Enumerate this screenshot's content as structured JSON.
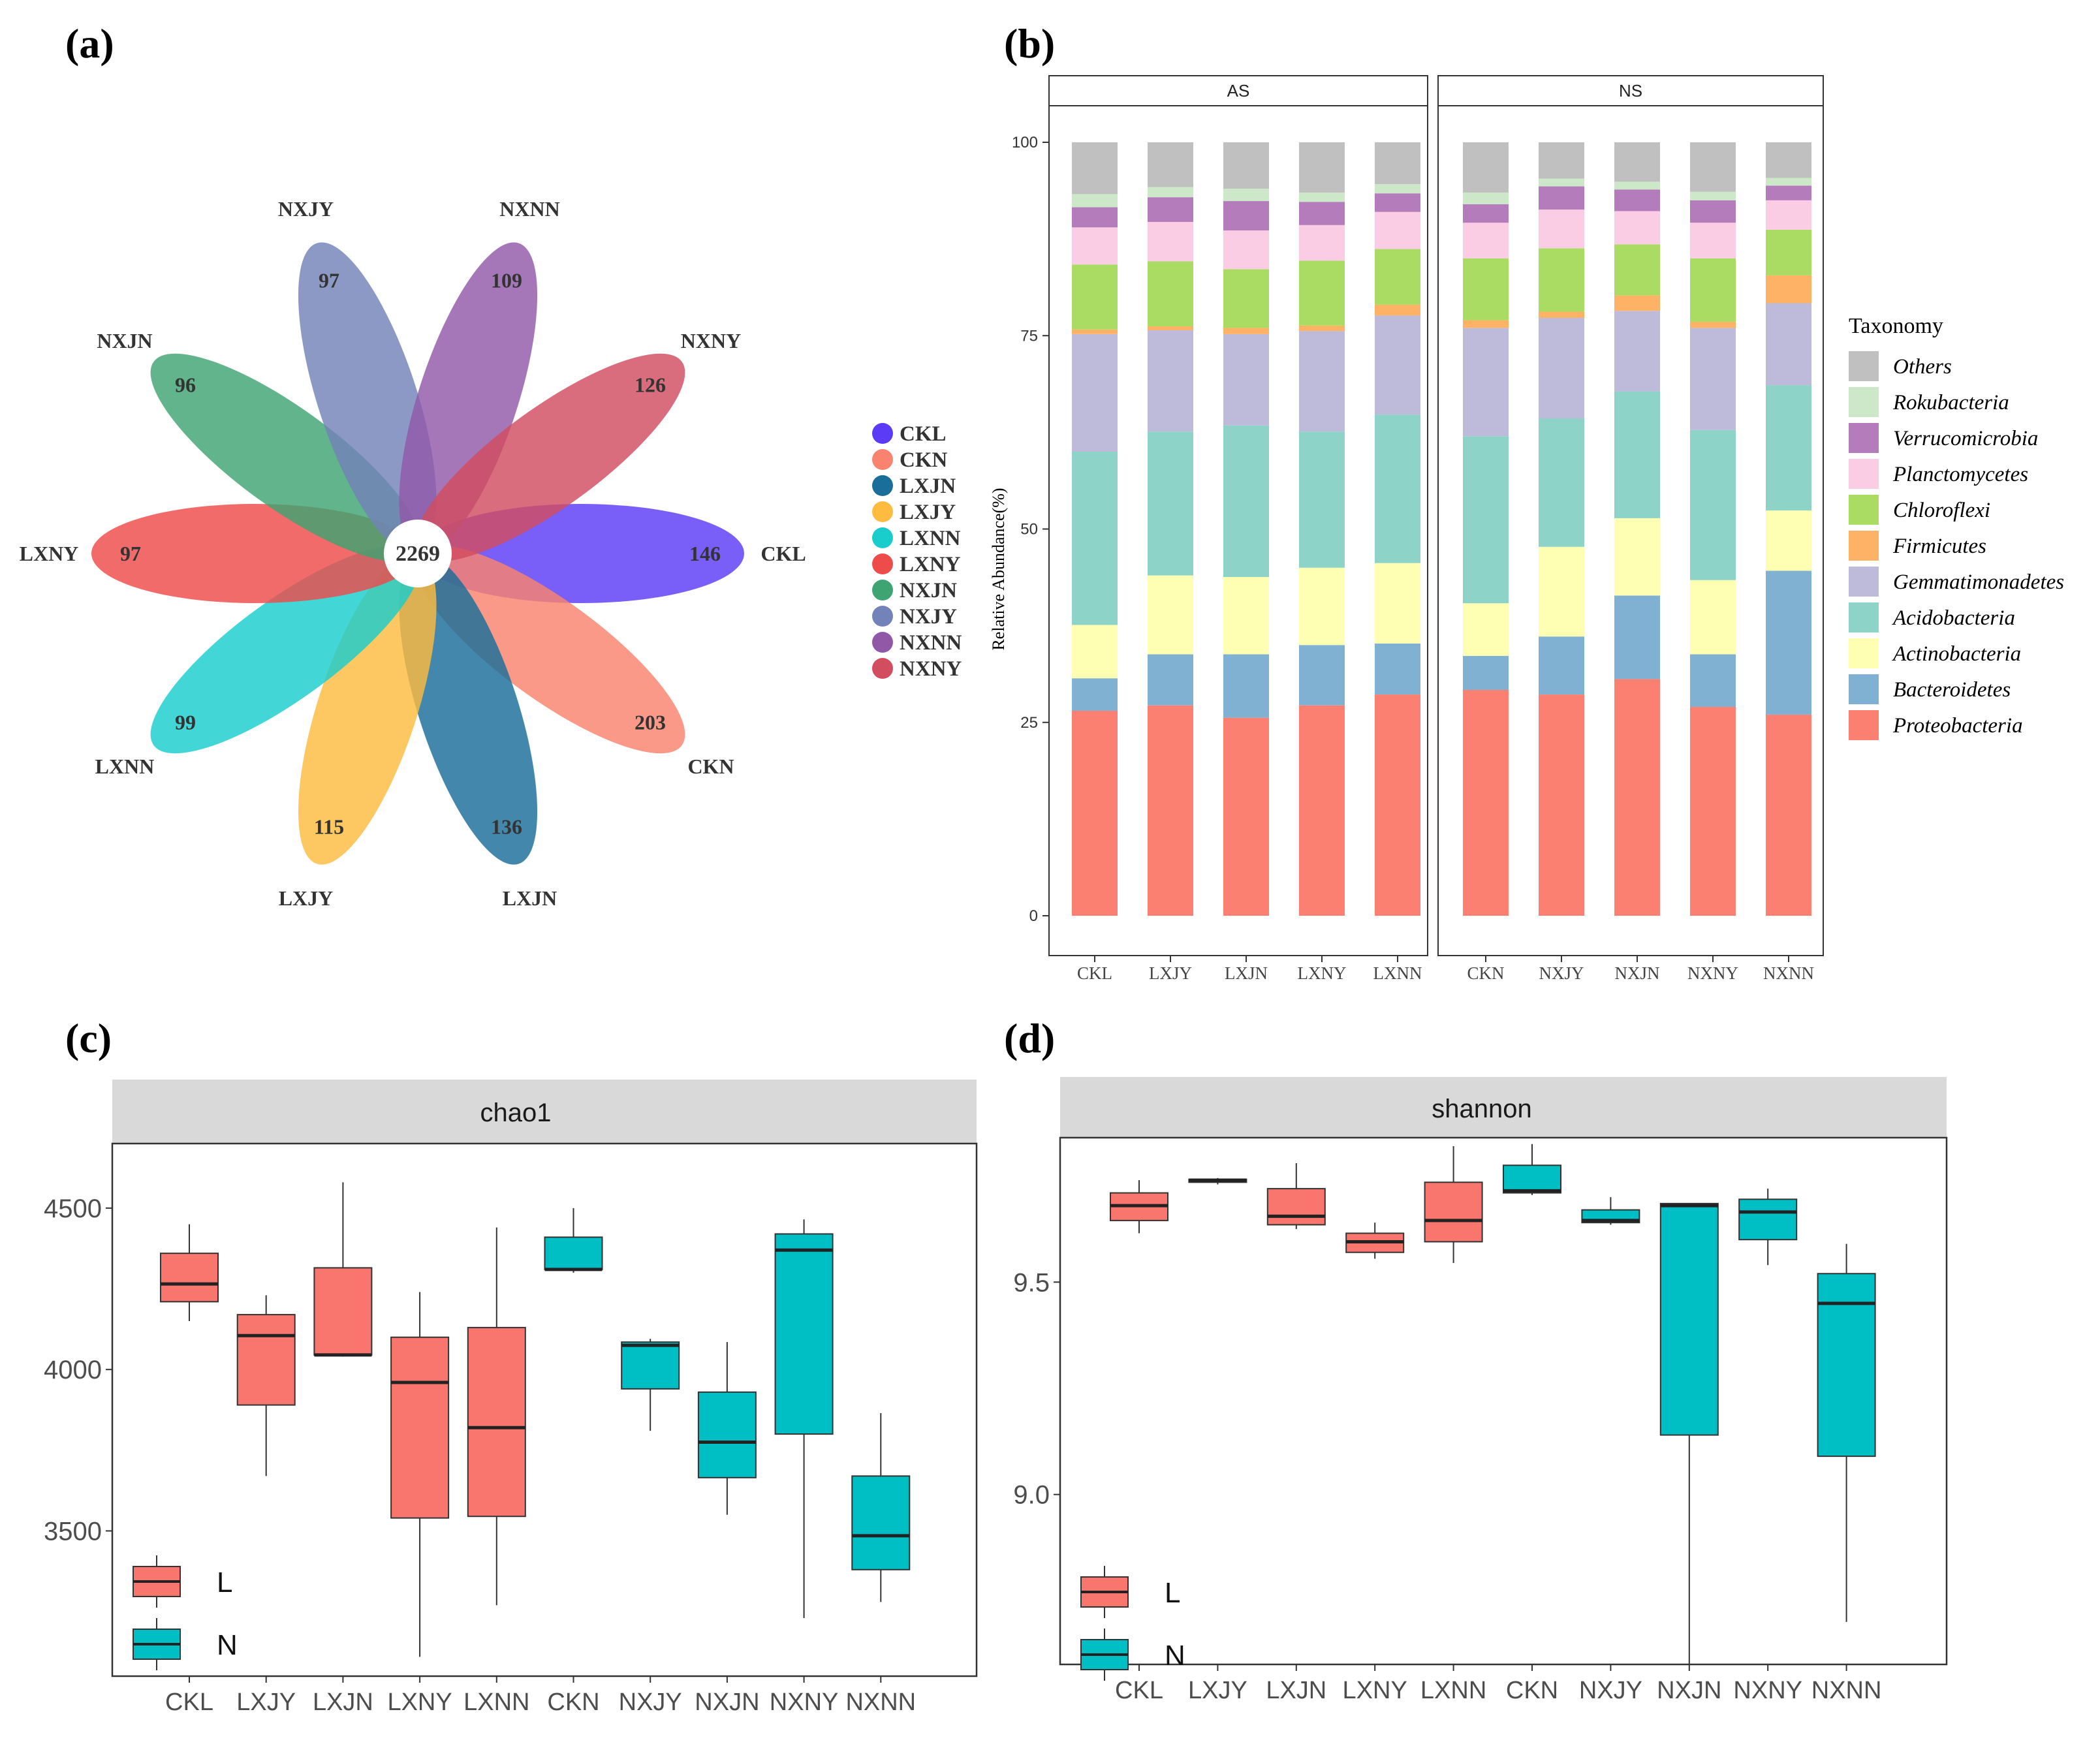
{
  "panel_labels": {
    "a": "(a)",
    "b": "(b)",
    "c": "(c)",
    "d": "(d)"
  },
  "colors": {
    "CKL": "#5B3BF5",
    "CKN": "#F9836E",
    "LXJN": "#1A6E9A",
    "LXJY": "#FDBB3F",
    "LXNN": "#19CDCD",
    "LXNY": "#EE4B4B",
    "NXJN": "#3EA472",
    "NXJY": "#7382B8",
    "NXNN": "#9158A8",
    "NXNY": "#D24D60",
    "box_L": "#F8766D",
    "box_N": "#00BFC4",
    "taxa": {
      "Others": "#C0C0C0",
      "Rokubacteria": "#CDE8C8",
      "Verrucomicrobia": "#B47CBB",
      "Planctomycetes": "#FBCDE5",
      "Chloroflexi": "#AADB63",
      "Firmicutes": "#FDB266",
      "Gemmatimonadetes": "#BEBADA",
      "Acidobacteria": "#8DD3C7",
      "Actinobacteria": "#FFFFB3",
      "Bacteroidetes": "#80B1D3",
      "Proteobacteria": "#FB8072"
    }
  },
  "chart_data": [
    {
      "type": "venn-flower",
      "panel": "a",
      "center_label": "2269",
      "petals": [
        {
          "group": "CKL",
          "unique": "146",
          "label": "CKL"
        },
        {
          "group": "CKN",
          "unique": "203",
          "label": "CKN"
        },
        {
          "group": "LXJN",
          "unique": "136",
          "label": "LXJN"
        },
        {
          "group": "LXJY",
          "unique": "115",
          "label": "LXJY"
        },
        {
          "group": "LXNN",
          "unique": "99",
          "label": "LXNN"
        },
        {
          "group": "LXNY",
          "unique": "97",
          "label": "LXNY"
        },
        {
          "group": "NXJN",
          "unique": "96",
          "label": "NXJN"
        },
        {
          "group": "NXJY",
          "unique": "97",
          "label": "NXJY"
        },
        {
          "group": "NXNN",
          "unique": "109",
          "label": "NXNN"
        },
        {
          "group": "NXNY",
          "unique": "126",
          "label": "NXNY"
        }
      ],
      "legend": [
        "CKL",
        "CKN",
        "LXJN",
        "LXJY",
        "LXNN",
        "LXNY",
        "NXJN",
        "NXJY",
        "NXNN",
        "NXNY"
      ]
    },
    {
      "type": "bar",
      "stacked": true,
      "panel": "b",
      "ylabel": "Relative Abundance(%)",
      "ylim": [
        0,
        100
      ],
      "yticks": [
        "0",
        "25",
        "50",
        "75",
        "100"
      ],
      "legend_title": "Taxonomy",
      "facets": [
        {
          "name": "AS",
          "categories": [
            "CKL",
            "LXJY",
            "LXJN",
            "LXNY",
            "LXNN"
          ]
        },
        {
          "name": "NS",
          "categories": [
            "CKN",
            "NXJY",
            "NXJN",
            "NXNY",
            "NXNN"
          ]
        }
      ],
      "series": [
        {
          "name": "Proteobacteria",
          "values": [
            26.5,
            27.2,
            25.6,
            27.2,
            28.6,
            29.2,
            28.6,
            30.6,
            27.0,
            26.0
          ]
        },
        {
          "name": "Bacteroidetes",
          "values": [
            4.2,
            6.6,
            8.2,
            7.8,
            6.6,
            4.4,
            7.5,
            10.8,
            6.8,
            18.6
          ]
        },
        {
          "name": "Actinobacteria",
          "values": [
            6.9,
            10.2,
            10.0,
            10.0,
            10.4,
            6.8,
            11.6,
            10.0,
            9.6,
            7.8
          ]
        },
        {
          "name": "Acidobacteria",
          "values": [
            22.4,
            18.6,
            19.6,
            17.6,
            19.2,
            21.6,
            16.6,
            16.4,
            19.4,
            16.2
          ]
        },
        {
          "name": "Gemmatimonadetes",
          "values": [
            15.2,
            13.1,
            11.8,
            13.0,
            12.8,
            14.0,
            13.0,
            10.4,
            13.2,
            10.6
          ]
        },
        {
          "name": "Firmicutes",
          "values": [
            0.6,
            0.5,
            0.8,
            0.7,
            1.4,
            1.0,
            0.8,
            2.0,
            0.8,
            3.6
          ]
        },
        {
          "name": "Chloroflexi",
          "values": [
            8.4,
            8.4,
            7.6,
            8.4,
            7.2,
            8.0,
            8.2,
            6.6,
            8.2,
            5.9
          ]
        },
        {
          "name": "Planctomycetes",
          "values": [
            4.8,
            5.1,
            5.0,
            4.6,
            4.8,
            4.6,
            5.0,
            4.3,
            4.6,
            3.8
          ]
        },
        {
          "name": "Verrucomicrobia",
          "values": [
            2.6,
            3.2,
            3.8,
            3.0,
            2.4,
            2.4,
            3.0,
            2.8,
            2.9,
            1.9
          ]
        },
        {
          "name": "Rokubacteria",
          "values": [
            1.7,
            1.3,
            1.6,
            1.2,
            1.2,
            1.5,
            1.0,
            1.0,
            1.1,
            1.0
          ]
        },
        {
          "name": "Others",
          "values": [
            6.7,
            5.8,
            6.0,
            6.5,
            5.4,
            6.5,
            4.7,
            5.1,
            6.4,
            4.6
          ]
        }
      ],
      "legend_order": [
        "Others",
        "Rokubacteria",
        "Verrucomicrobia",
        "Planctomycetes",
        "Chloroflexi",
        "Firmicutes",
        "Gemmatimonadetes",
        "Acidobacteria",
        "Actinobacteria",
        "Bacteroidetes",
        "Proteobacteria"
      ]
    },
    {
      "type": "boxplot",
      "panel": "c",
      "title": "chao1",
      "categories": [
        "CKL",
        "LXJY",
        "LXJN",
        "LXNY",
        "LXNN",
        "CKN",
        "NXJY",
        "NXJN",
        "NXNY",
        "NXNN"
      ],
      "groups": [
        "L",
        "L",
        "L",
        "L",
        "L",
        "N",
        "N",
        "N",
        "N",
        "N"
      ],
      "ylim": [
        3050,
        4700
      ],
      "yticks": [
        "3500",
        "4000",
        "4500"
      ],
      "boxes": [
        {
          "min": 4150,
          "q1": 4210,
          "median": 4265,
          "q3": 4360,
          "max": 4450
        },
        {
          "min": 3670,
          "q1": 3890,
          "median": 4105,
          "q3": 4170,
          "max": 4230
        },
        {
          "min": 4040,
          "q1": 4045,
          "median": 4045,
          "q3": 4315,
          "max": 4580
        },
        {
          "min": 3110,
          "q1": 3540,
          "median": 3960,
          "q3": 4100,
          "max": 4240
        },
        {
          "min": 3270,
          "q1": 3545,
          "median": 3820,
          "q3": 4130,
          "max": 4440
        },
        {
          "min": 4300,
          "q1": 4310,
          "median": 4310,
          "q3": 4410,
          "max": 4500
        },
        {
          "min": 3810,
          "q1": 3940,
          "median": 4075,
          "q3": 4085,
          "max": 4095
        },
        {
          "min": 3550,
          "q1": 3665,
          "median": 3775,
          "q3": 3930,
          "max": 4085
        },
        {
          "min": 3230,
          "q1": 3800,
          "median": 4370,
          "q3": 4420,
          "max": 4465
        },
        {
          "min": 3280,
          "q1": 3380,
          "median": 3485,
          "q3": 3670,
          "max": 3865
        }
      ],
      "legend": [
        {
          "key": "L",
          "label": "L"
        },
        {
          "key": "N",
          "label": "N"
        }
      ]
    },
    {
      "type": "boxplot",
      "panel": "d",
      "title": "shannon",
      "categories": [
        "CKL",
        "LXJY",
        "LXJN",
        "LXNY",
        "LXNN",
        "CKN",
        "NXJY",
        "NXJN",
        "NXNY",
        "NXNN"
      ],
      "groups": [
        "L",
        "L",
        "L",
        "L",
        "L",
        "N",
        "N",
        "N",
        "N",
        "N"
      ],
      "ylim": [
        8.6,
        9.84
      ],
      "yticks": [
        "9.0",
        "9.5"
      ],
      "boxes": [
        {
          "min": 9.615,
          "q1": 9.645,
          "median": 9.68,
          "q3": 9.71,
          "max": 9.74
        },
        {
          "min": 9.73,
          "q1": 9.735,
          "median": 9.74,
          "q3": 9.742,
          "max": 9.745
        },
        {
          "min": 9.625,
          "q1": 9.635,
          "median": 9.655,
          "q3": 9.72,
          "max": 9.78
        },
        {
          "min": 9.555,
          "q1": 9.57,
          "median": 9.595,
          "q3": 9.615,
          "max": 9.64
        },
        {
          "min": 9.545,
          "q1": 9.595,
          "median": 9.645,
          "q3": 9.735,
          "max": 9.82
        },
        {
          "min": 9.705,
          "q1": 9.71,
          "median": 9.715,
          "q3": 9.775,
          "max": 9.825
        },
        {
          "min": 9.635,
          "q1": 9.64,
          "median": 9.645,
          "q3": 9.67,
          "max": 9.7
        },
        {
          "min": 8.6,
          "q1": 9.14,
          "median": 9.68,
          "q3": 9.685,
          "max": 9.685
        },
        {
          "min": 9.54,
          "q1": 9.6,
          "median": 9.665,
          "q3": 9.695,
          "max": 9.72
        },
        {
          "min": 8.7,
          "q1": 9.09,
          "median": 9.45,
          "q3": 9.52,
          "max": 9.59
        }
      ],
      "legend": [
        {
          "key": "L",
          "label": "L"
        },
        {
          "key": "N",
          "label": "N"
        }
      ]
    }
  ]
}
